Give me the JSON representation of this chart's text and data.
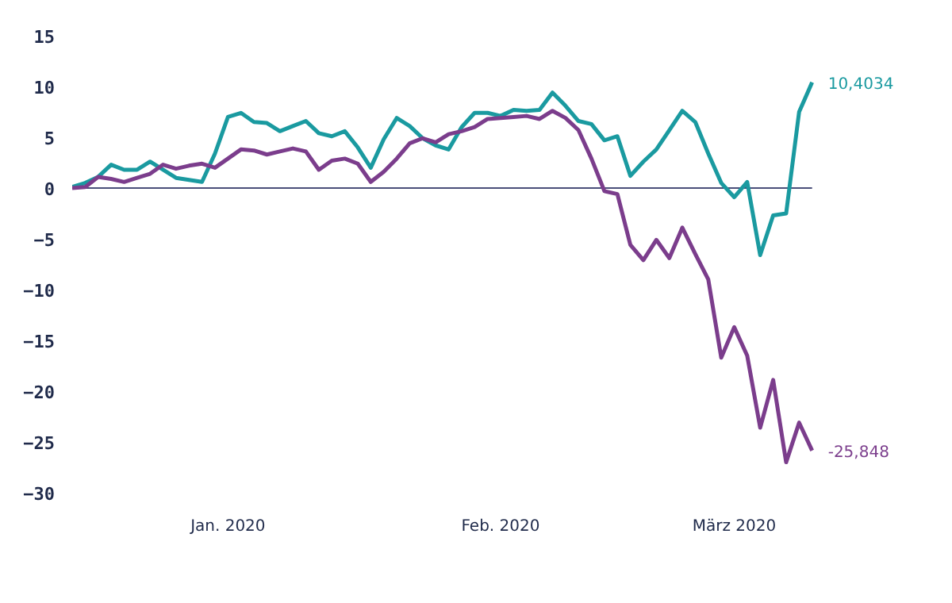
{
  "chart_data": {
    "type": "line",
    "categories": [
      null,
      null,
      null,
      null,
      null,
      null,
      null,
      null,
      null,
      null,
      null,
      null,
      "Jan. 2020",
      null,
      null,
      null,
      null,
      null,
      null,
      null,
      null,
      null,
      null,
      null,
      null,
      null,
      null,
      null,
      null,
      null,
      null,
      null,
      null,
      "Feb. 2020",
      null,
      null,
      null,
      null,
      null,
      null,
      null,
      null,
      null,
      null,
      null,
      null,
      null,
      null,
      null,
      null,
      null,
      "März 2020",
      null,
      null,
      null,
      null,
      null,
      null
    ],
    "series": [
      {
        "color": "#1a9aa0",
        "values": [
          0.1,
          0.5,
          1.1,
          2.3,
          1.8,
          1.8,
          2.6,
          1.8,
          1.0,
          0.8,
          0.6,
          3.4,
          7.0,
          7.4,
          6.5,
          6.4,
          5.6,
          6.1,
          6.6,
          5.4,
          5.1,
          5.6,
          4.0,
          2.0,
          4.8,
          6.9,
          6.1,
          4.9,
          4.2,
          3.8,
          6.0,
          7.4,
          7.4,
          7.1,
          7.7,
          7.6,
          7.7,
          9.4,
          8.1,
          6.6,
          6.3,
          4.7,
          5.1,
          1.2,
          2.6,
          3.8,
          5.7,
          7.6,
          6.5,
          3.4,
          0.5,
          -0.9,
          0.6,
          -6.6,
          -2.7,
          -2.5,
          7.5,
          10.4034
        ]
      },
      {
        "color": "#7b3d8c",
        "values": [
          0,
          0.1,
          1.1,
          0.9,
          0.6,
          1.0,
          1.4,
          2.3,
          1.9,
          2.2,
          2.4,
          2.0,
          2.9,
          3.8,
          3.7,
          3.3,
          3.6,
          3.9,
          3.6,
          1.8,
          2.7,
          2.9,
          2.4,
          0.6,
          1.6,
          2.9,
          4.4,
          4.9,
          4.5,
          5.3,
          5.6,
          6.0,
          6.8,
          6.9,
          7.0,
          7.1,
          6.8,
          7.6,
          6.9,
          5.7,
          2.9,
          -0.3,
          -0.6,
          -5.6,
          -7.1,
          -5.1,
          -6.9,
          -3.9,
          -6.5,
          -9.0,
          -16.7,
          -13.7,
          -16.5,
          -23.6,
          -18.9,
          -27.0,
          -23.1,
          -25.848
        ]
      }
    ],
    "ylim": [
      -30,
      15
    ],
    "yticks": [
      -30,
      -25,
      -20,
      -15,
      -10,
      -5,
      0,
      5,
      10,
      15
    ],
    "ref_lines": [
      {
        "axis": "y",
        "value": 0,
        "color": "#4a4f7a"
      }
    ],
    "annotations": [
      "10,4034",
      "-25,848"
    ],
    "grid": false
  }
}
